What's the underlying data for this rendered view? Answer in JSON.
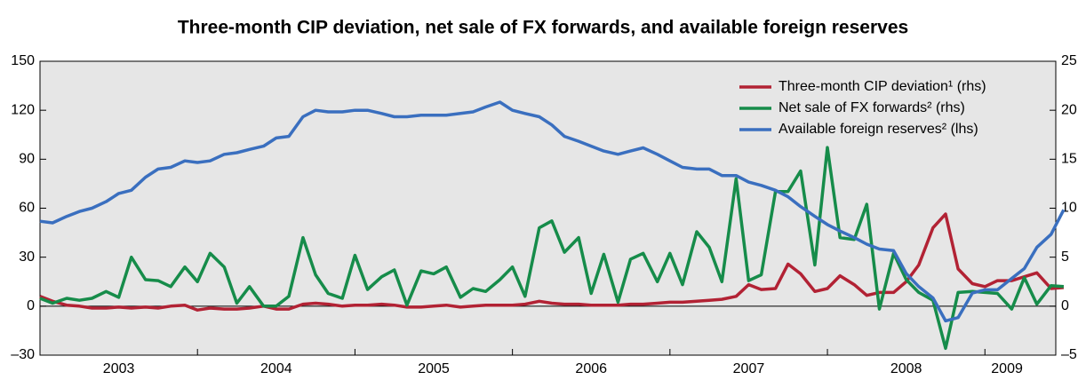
{
  "chart_data": {
    "type": "line",
    "title": "Three-month CIP deviation, net sale of FX forwards, and available foreign reserves",
    "x": [
      2003.0,
      2003.08,
      2003.17,
      2003.25,
      2003.33,
      2003.42,
      2003.5,
      2003.58,
      2003.67,
      2003.75,
      2003.83,
      2003.92,
      2004.0,
      2004.08,
      2004.17,
      2004.25,
      2004.33,
      2004.42,
      2004.5,
      2004.58,
      2004.67,
      2004.75,
      2004.83,
      2004.92,
      2005.0,
      2005.08,
      2005.17,
      2005.25,
      2005.33,
      2005.42,
      2005.5,
      2005.58,
      2005.67,
      2005.75,
      2005.83,
      2005.92,
      2006.0,
      2006.08,
      2006.17,
      2006.25,
      2006.33,
      2006.42,
      2006.5,
      2006.58,
      2006.67,
      2006.75,
      2006.83,
      2006.92,
      2007.0,
      2007.08,
      2007.17,
      2007.25,
      2007.33,
      2007.42,
      2007.5,
      2007.58,
      2007.67,
      2007.75,
      2007.83,
      2007.92,
      2008.0,
      2008.08,
      2008.17,
      2008.25,
      2008.33,
      2008.42,
      2008.5,
      2008.58,
      2008.67,
      2008.75,
      2008.83,
      2008.92,
      2009.0,
      2009.08,
      2009.17,
      2009.25,
      2009.33,
      2009.42,
      2009.5
    ],
    "xlim": [
      2003.0,
      2009.45
    ],
    "xticks": [
      {
        "value": 2003.5,
        "label": "2003"
      },
      {
        "value": 2004.5,
        "label": "2004"
      },
      {
        "value": 2005.5,
        "label": "2005"
      },
      {
        "value": 2006.5,
        "label": "2006"
      },
      {
        "value": 2007.5,
        "label": "2007"
      },
      {
        "value": 2008.5,
        "label": "2008"
      },
      {
        "value": 2009.14,
        "label": "2009"
      }
    ],
    "ylim": [
      -30,
      150
    ],
    "yticks": [
      {
        "value": -30,
        "label": "–30"
      },
      0,
      30,
      60,
      90,
      120,
      150
    ],
    "y2lim": [
      -5,
      25
    ],
    "y2ticks": [
      {
        "value": -5,
        "label": "–5"
      },
      0,
      5,
      10,
      15,
      20,
      25
    ],
    "legend": "top-right",
    "series": [
      {
        "name": "Three-month CIP deviation¹ (rhs)",
        "color": "#b22234",
        "axis": "y2",
        "values": [
          1,
          0.5,
          0.1,
          0,
          -0.2,
          -0.2,
          -0.1,
          -0.2,
          -0.1,
          -0.2,
          0,
          0.1,
          -0.4,
          -0.2,
          -0.3,
          -0.3,
          -0.2,
          0,
          -0.3,
          -0.3,
          0.2,
          0.3,
          0.2,
          0,
          0.1,
          0.1,
          0.2,
          0.1,
          -0.1,
          -0.1,
          0,
          0.1,
          -0.1,
          0,
          0.1,
          0.1,
          0.1,
          0.2,
          0.5,
          0.3,
          0.2,
          0.2,
          0.1,
          0.1,
          0.1,
          0.2,
          0.2,
          0.3,
          0.4,
          0.4,
          0.5,
          0.6,
          0.7,
          1,
          2.2,
          1.7,
          1.8,
          4.3,
          3.3,
          1.5,
          1.8,
          3.1,
          2.2,
          1.1,
          1.4,
          1.4,
          2.5,
          4.2,
          8,
          9.4,
          3.8,
          2.3,
          2,
          2.6,
          2.6,
          3,
          3.4,
          1.8,
          1.9
        ]
      },
      {
        "name": "Net sale of FX forwards² (rhs)",
        "color": "#168c4a",
        "axis": "y2",
        "values": [
          0.8,
          0.3,
          0.8,
          0.6,
          0.8,
          1.5,
          0.9,
          5,
          2.7,
          2.6,
          2,
          4,
          2.5,
          5.4,
          4,
          0.3,
          2,
          0,
          0,
          1,
          7,
          3.2,
          1.3,
          0.8,
          5.2,
          1.7,
          3,
          3.7,
          0.1,
          3.6,
          3.3,
          4,
          0.9,
          1.8,
          1.5,
          2.7,
          4,
          1,
          8,
          8.7,
          5.5,
          7,
          1.3,
          5.3,
          0.4,
          4.8,
          5.4,
          2.5,
          5.4,
          2.2,
          7.6,
          6,
          2.5,
          13,
          2.6,
          3.2,
          11.7,
          11.7,
          13.8,
          4.2,
          16.2,
          7,
          6.8,
          10.4,
          -0.3,
          5.4,
          2.7,
          1.4,
          0.6,
          -4.3,
          1.4,
          1.5,
          1.4,
          1.3,
          -0.3,
          2.9,
          0.2,
          2.1,
          2
        ]
      },
      {
        "name": "Available foreign reserves² (lhs)",
        "color": "#3a6fbf",
        "axis": "y",
        "values": [
          52,
          51,
          55,
          58,
          60,
          64,
          69,
          71,
          79,
          84,
          85,
          89,
          88,
          89,
          93,
          94,
          96,
          98,
          103,
          104,
          116,
          120,
          119,
          119,
          120,
          120,
          118,
          116,
          116,
          117,
          117,
          117,
          118,
          119,
          122,
          125,
          120,
          118,
          116,
          111,
          104,
          101,
          98,
          95,
          93,
          95,
          97,
          93,
          89,
          85,
          84,
          84,
          80,
          80,
          76,
          74,
          71,
          67,
          61,
          55,
          50,
          46,
          42,
          38,
          35,
          34,
          20,
          12,
          5,
          -9,
          -7,
          8,
          10,
          10,
          17,
          23,
          36,
          44,
          59
        ]
      }
    ]
  }
}
